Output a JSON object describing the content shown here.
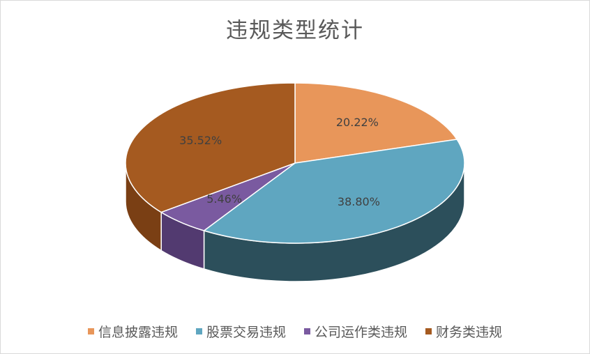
{
  "chart_data": {
    "type": "pie",
    "title": "违规类型统计",
    "series": [
      {
        "name": "信息披露违规",
        "value": 20.22,
        "label": "20.22%",
        "color": "#E8965A",
        "side": "#B7713F"
      },
      {
        "name": "股票交易违规",
        "value": 38.8,
        "label": "38.80%",
        "color": "#5FA6C0",
        "side": "#2C4F5B"
      },
      {
        "name": "公司运作类违规",
        "value": 5.46,
        "label": "5.46%",
        "color": "#7A5AA0",
        "side": "#523A70"
      },
      {
        "name": "财务类违规",
        "value": 35.52,
        "label": "35.52%",
        "color": "#A55A20",
        "side": "#7A3F14"
      }
    ],
    "legend_position": "bottom",
    "style": "3d-pie"
  }
}
